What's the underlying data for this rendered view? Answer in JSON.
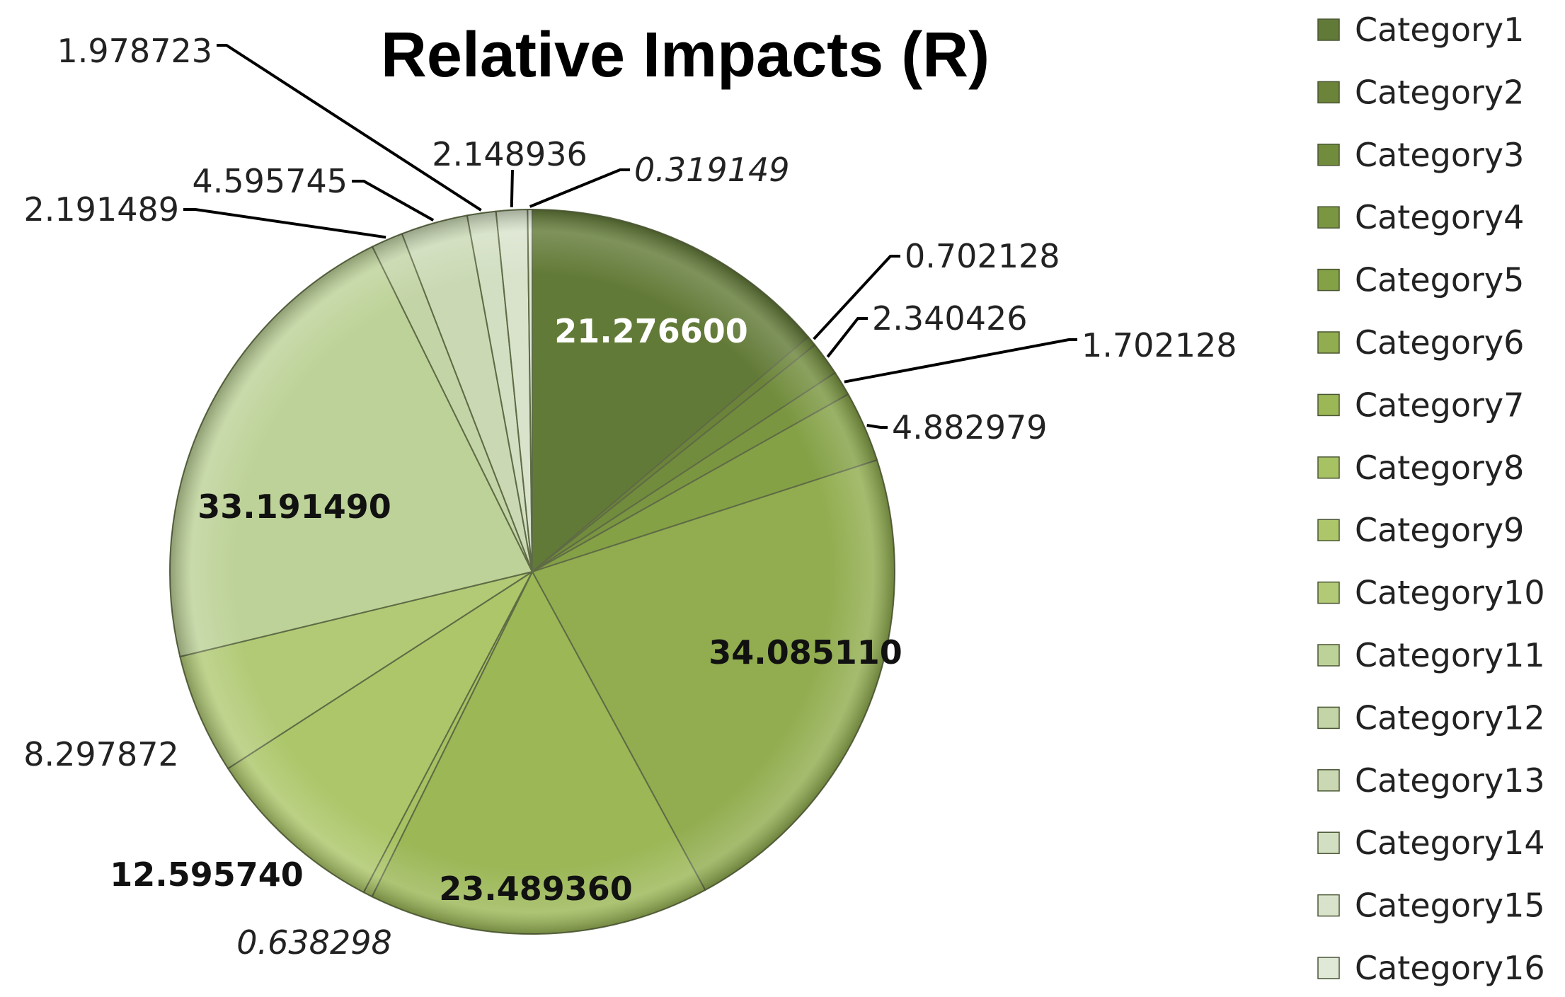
{
  "chart_data": {
    "type": "pie",
    "title": "Relative Impacts (R)",
    "legend_position": "right",
    "categories": [
      "Category1",
      "Category2",
      "Category3",
      "Category4",
      "Category5",
      "Category6",
      "Category7",
      "Category8",
      "Category9",
      "Category10",
      "Category11",
      "Category12",
      "Category13",
      "Category14",
      "Category15",
      "Category16"
    ],
    "values": [
      21.2766,
      0.702128,
      2.340426,
      1.702128,
      4.882979,
      34.08511,
      23.48936,
      0.638298,
      12.59574,
      8.297872,
      33.19149,
      2.191489,
      4.595745,
      1.978723,
      2.148936,
      0.319149
    ],
    "data_labels": [
      "21.276600",
      "0.702128",
      "2.340426",
      "1.702128",
      "4.882979",
      "34.085110",
      "23.489360",
      "0.638298",
      "12.595740",
      "8.297872",
      "33.191490",
      "2.191489",
      "4.595745",
      "1.978723",
      "2.148936",
      "0.319149"
    ],
    "label_styles": [
      "bold-white",
      "plain",
      "plain",
      "plain",
      "plain",
      "bold",
      "bold",
      "italic",
      "bold",
      "plain",
      "bold",
      "plain",
      "plain",
      "plain",
      "plain",
      "italic"
    ],
    "colors": [
      "#627a37",
      "#6b8439",
      "#718c3c",
      "#7a9640",
      "#84a146",
      "#91ad4f",
      "#9bb756",
      "#a7c262",
      "#acc669",
      "#b2ca76",
      "#bdd298",
      "#c3d4a6",
      "#cad9b4",
      "#d2dfc2",
      "#d9e3cc",
      "#e0e8d8"
    ]
  }
}
